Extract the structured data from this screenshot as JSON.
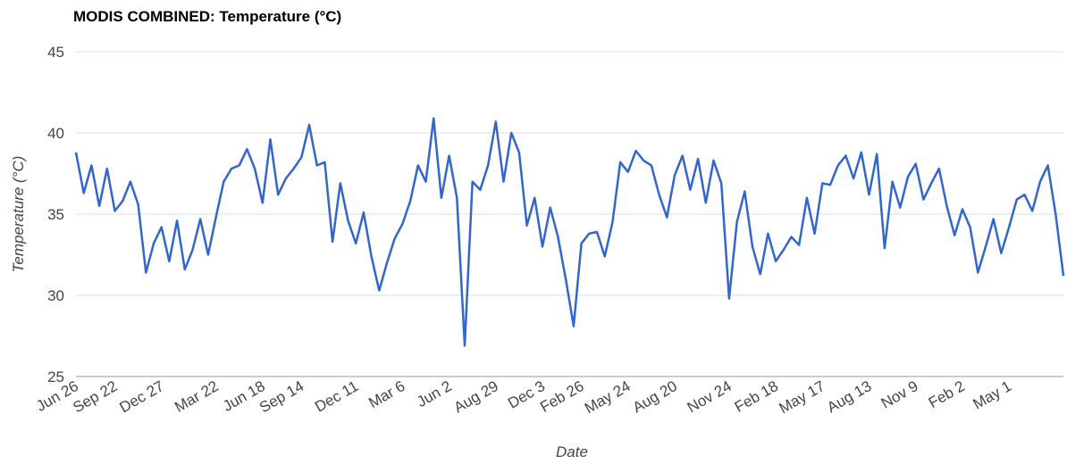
{
  "chart_data": {
    "type": "line",
    "title": "MODIS COMBINED: Temperature (°C)",
    "x_label": "Date",
    "y_label": "Temperature (°C)",
    "categories": [
      "Jun 26",
      null,
      null,
      null,
      null,
      "Sep 22",
      null,
      null,
      null,
      null,
      null,
      "Dec 27",
      null,
      null,
      null,
      null,
      null,
      null,
      "Mar 22",
      null,
      null,
      null,
      null,
      null,
      "Jun 18",
      null,
      null,
      null,
      null,
      "Sep 14",
      null,
      null,
      null,
      null,
      null,
      null,
      "Dec 11",
      null,
      null,
      null,
      null,
      null,
      "Mar 6",
      null,
      null,
      null,
      null,
      null,
      "Jun 2",
      null,
      null,
      null,
      null,
      null,
      "Aug 29",
      null,
      null,
      null,
      null,
      null,
      "Dec 3",
      null,
      null,
      null,
      null,
      "Feb 26",
      null,
      null,
      null,
      null,
      null,
      "May 24",
      null,
      null,
      null,
      null,
      null,
      "Aug 20",
      null,
      null,
      null,
      null,
      null,
      null,
      "Nov 24",
      null,
      null,
      null,
      null,
      null,
      "Feb 18",
      null,
      null,
      null,
      null,
      null,
      "May 17",
      null,
      null,
      null,
      null,
      null,
      "Aug 13",
      null,
      null,
      null,
      null,
      null,
      "Nov 9",
      null,
      null,
      null,
      null,
      null,
      "Feb 2",
      null,
      null,
      null,
      null,
      null,
      "May 1",
      null,
      null,
      null,
      null,
      null,
      null,
      null
    ],
    "series": [
      {
        "name": "Temperature",
        "color": "#3366cc",
        "values": [
          38.8,
          36.3,
          38.0,
          35.5,
          37.8,
          35.2,
          35.8,
          37.0,
          35.6,
          31.4,
          33.2,
          34.2,
          32.1,
          34.6,
          31.6,
          32.8,
          34.7,
          32.5,
          34.8,
          37.0,
          37.8,
          38.0,
          39.0,
          37.8,
          35.7,
          39.6,
          36.2,
          37.2,
          37.8,
          38.5,
          40.5,
          38.0,
          38.2,
          33.3,
          36.9,
          34.6,
          33.2,
          35.1,
          32.4,
          30.3,
          32.0,
          33.5,
          34.4,
          35.8,
          38.0,
          37.0,
          40.9,
          36.0,
          38.6,
          36.0,
          26.9,
          37.0,
          36.5,
          38.0,
          40.7,
          37.0,
          40.0,
          38.8,
          34.3,
          36.0,
          33.0,
          35.4,
          33.6,
          31.0,
          28.1,
          33.2,
          33.8,
          33.9,
          32.4,
          34.5,
          38.2,
          37.6,
          38.9,
          38.3,
          38.0,
          36.2,
          34.8,
          37.4,
          38.6,
          36.5,
          38.4,
          35.7,
          38.3,
          36.9,
          29.8,
          34.5,
          36.4,
          33.0,
          31.3,
          33.8,
          32.1,
          32.8,
          33.6,
          33.1,
          36.0,
          33.8,
          36.9,
          36.8,
          38.0,
          38.6,
          37.2,
          38.8,
          36.2,
          38.7,
          32.9,
          37.0,
          35.4,
          37.3,
          38.1,
          35.9,
          36.9,
          37.8,
          35.5,
          33.7,
          35.3,
          34.2,
          31.4,
          33.0,
          34.7,
          32.6,
          34.2,
          35.9,
          36.2,
          35.2,
          37.0,
          38.0,
          35.0,
          31.2
        ]
      }
    ],
    "ylim": [
      25,
      45
    ],
    "yticks": [
      25,
      30,
      35,
      40,
      45
    ],
    "grid": true
  }
}
